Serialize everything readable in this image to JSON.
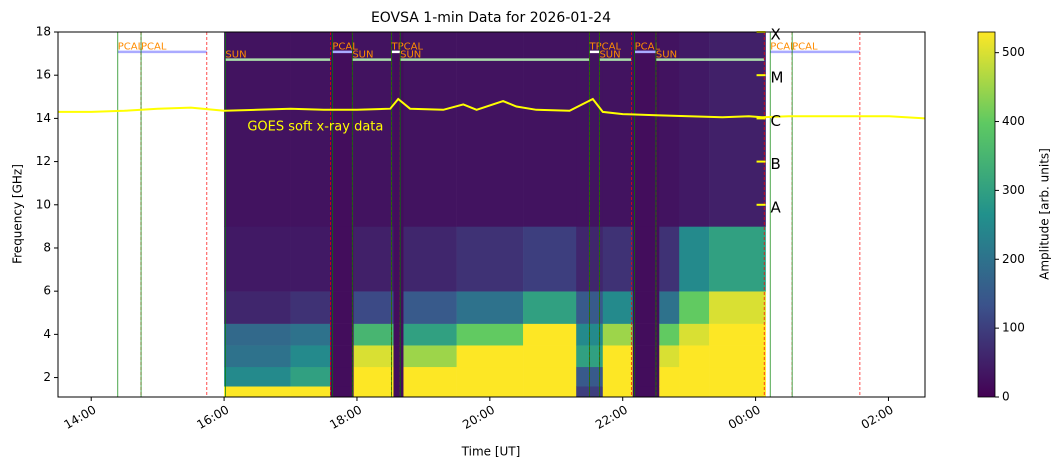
{
  "chart_data": {
    "type": "heatmap",
    "title": "EOVSA 1-min Data for 2026-01-24",
    "xlabel": "Time [UT]",
    "ylabel": "Frequency [GHz]",
    "colorbar_label": "Amplitude [arb. units]",
    "colormap": "viridis",
    "xlim": [
      13.5,
      26.55
    ],
    "xticks": [
      {
        "value": 14,
        "label": "14:00"
      },
      {
        "value": 16,
        "label": "16:00"
      },
      {
        "value": 18,
        "label": "18:00"
      },
      {
        "value": 20,
        "label": "20:00"
      },
      {
        "value": 22,
        "label": "22:00"
      },
      {
        "value": 24,
        "label": "00:00"
      },
      {
        "value": 26,
        "label": "02:00"
      }
    ],
    "ylim": [
      1.1,
      18
    ],
    "yticks": [
      2,
      4,
      6,
      8,
      10,
      12,
      14,
      16,
      18
    ],
    "clim": [
      0,
      530
    ],
    "cticks": [
      0,
      100,
      200,
      300,
      400,
      500
    ],
    "x_edges": [
      16.0,
      17.0,
      17.6,
      17.95,
      18.55,
      18.7,
      19.5,
      20.5,
      21.3,
      21.7,
      22.15,
      22.55,
      22.85,
      23.3,
      24.15
    ],
    "y_edges": [
      1.1,
      1.6,
      2.5,
      3.5,
      4.5,
      6,
      9,
      18
    ],
    "z": [
      [
        560,
        250,
        200,
        180,
        60,
        40,
        30
      ],
      [
        560,
        300,
        250,
        200,
        80,
        40,
        30
      ],
      [
        20,
        20,
        20,
        20,
        20,
        20,
        20
      ],
      [
        560,
        560,
        500,
        350,
        120,
        50,
        30
      ],
      [
        20,
        20,
        20,
        20,
        20,
        20,
        20
      ],
      [
        560,
        560,
        450,
        300,
        150,
        60,
        30
      ],
      [
        560,
        560,
        560,
        400,
        200,
        80,
        30
      ],
      [
        560,
        560,
        560,
        560,
        300,
        100,
        30
      ],
      [
        100,
        150,
        300,
        250,
        150,
        60,
        30
      ],
      [
        560,
        560,
        560,
        450,
        250,
        80,
        30
      ],
      [
        20,
        20,
        20,
        20,
        20,
        20,
        20
      ],
      [
        560,
        560,
        500,
        400,
        200,
        80,
        30
      ],
      [
        560,
        560,
        560,
        500,
        400,
        250,
        40
      ],
      [
        560,
        560,
        560,
        560,
        500,
        300,
        50
      ]
    ],
    "goes": {
      "color": "#ffff00",
      "x": [
        13.5,
        14.0,
        14.5,
        15.0,
        15.5,
        16.0,
        16.5,
        17.0,
        17.5,
        18.0,
        18.5,
        18.62,
        18.8,
        19.3,
        19.6,
        19.8,
        20.2,
        20.4,
        20.7,
        21.2,
        21.55,
        21.7,
        22.0,
        22.5,
        23.0,
        23.5,
        23.9,
        24.1,
        24.5,
        25.0,
        25.5,
        26.0,
        26.55
      ],
      "y": [
        14.3,
        14.3,
        14.35,
        14.45,
        14.5,
        14.35,
        14.4,
        14.45,
        14.4,
        14.4,
        14.45,
        14.9,
        14.45,
        14.4,
        14.65,
        14.4,
        14.8,
        14.55,
        14.4,
        14.35,
        14.9,
        14.3,
        14.2,
        14.15,
        14.1,
        14.05,
        14.1,
        14.05,
        14.1,
        14.1,
        14.1,
        14.1,
        14.0
      ]
    },
    "goes_label": {
      "text": "GOES soft x-ray data",
      "x": 16.35,
      "y": 13.6
    },
    "goes_levels": [
      {
        "label": "X",
        "value": 18
      },
      {
        "label": "M",
        "value": 16
      },
      {
        "label": "C",
        "value": 14
      },
      {
        "label": "B",
        "value": 12
      },
      {
        "label": "A",
        "value": 10
      }
    ],
    "goes_levels_x": 24.15,
    "scan_colors": {
      "PCAL": "#aaaaff",
      "SUN": "#aaddaa",
      "TPCAL": "#ffffff"
    },
    "annotation_color": "#ff8c00",
    "scans": [
      {
        "label": "PCAL",
        "start": 14.4,
        "end": 14.75
      },
      {
        "label": "PCAL",
        "start": 14.75,
        "end": 15.74
      },
      {
        "label": "SUN",
        "start": 16.02,
        "end": 17.6
      },
      {
        "label": "PCAL",
        "start": 17.63,
        "end": 17.93
      },
      {
        "label": "SUN",
        "start": 17.93,
        "end": 18.52
      },
      {
        "label": "TPCAL",
        "start": 18.52,
        "end": 18.65
      },
      {
        "label": "SUN",
        "start": 18.65,
        "end": 21.5
      },
      {
        "label": "TPCAL",
        "start": 21.5,
        "end": 21.65
      },
      {
        "label": "SUN",
        "start": 21.65,
        "end": 22.13
      },
      {
        "label": "PCAL",
        "start": 22.18,
        "end": 22.5
      },
      {
        "label": "SUN",
        "start": 22.5,
        "end": 24.13
      },
      {
        "label": "PCAL",
        "start": 24.22,
        "end": 24.55
      },
      {
        "label": "PCAL",
        "start": 24.55,
        "end": 25.57
      }
    ]
  }
}
